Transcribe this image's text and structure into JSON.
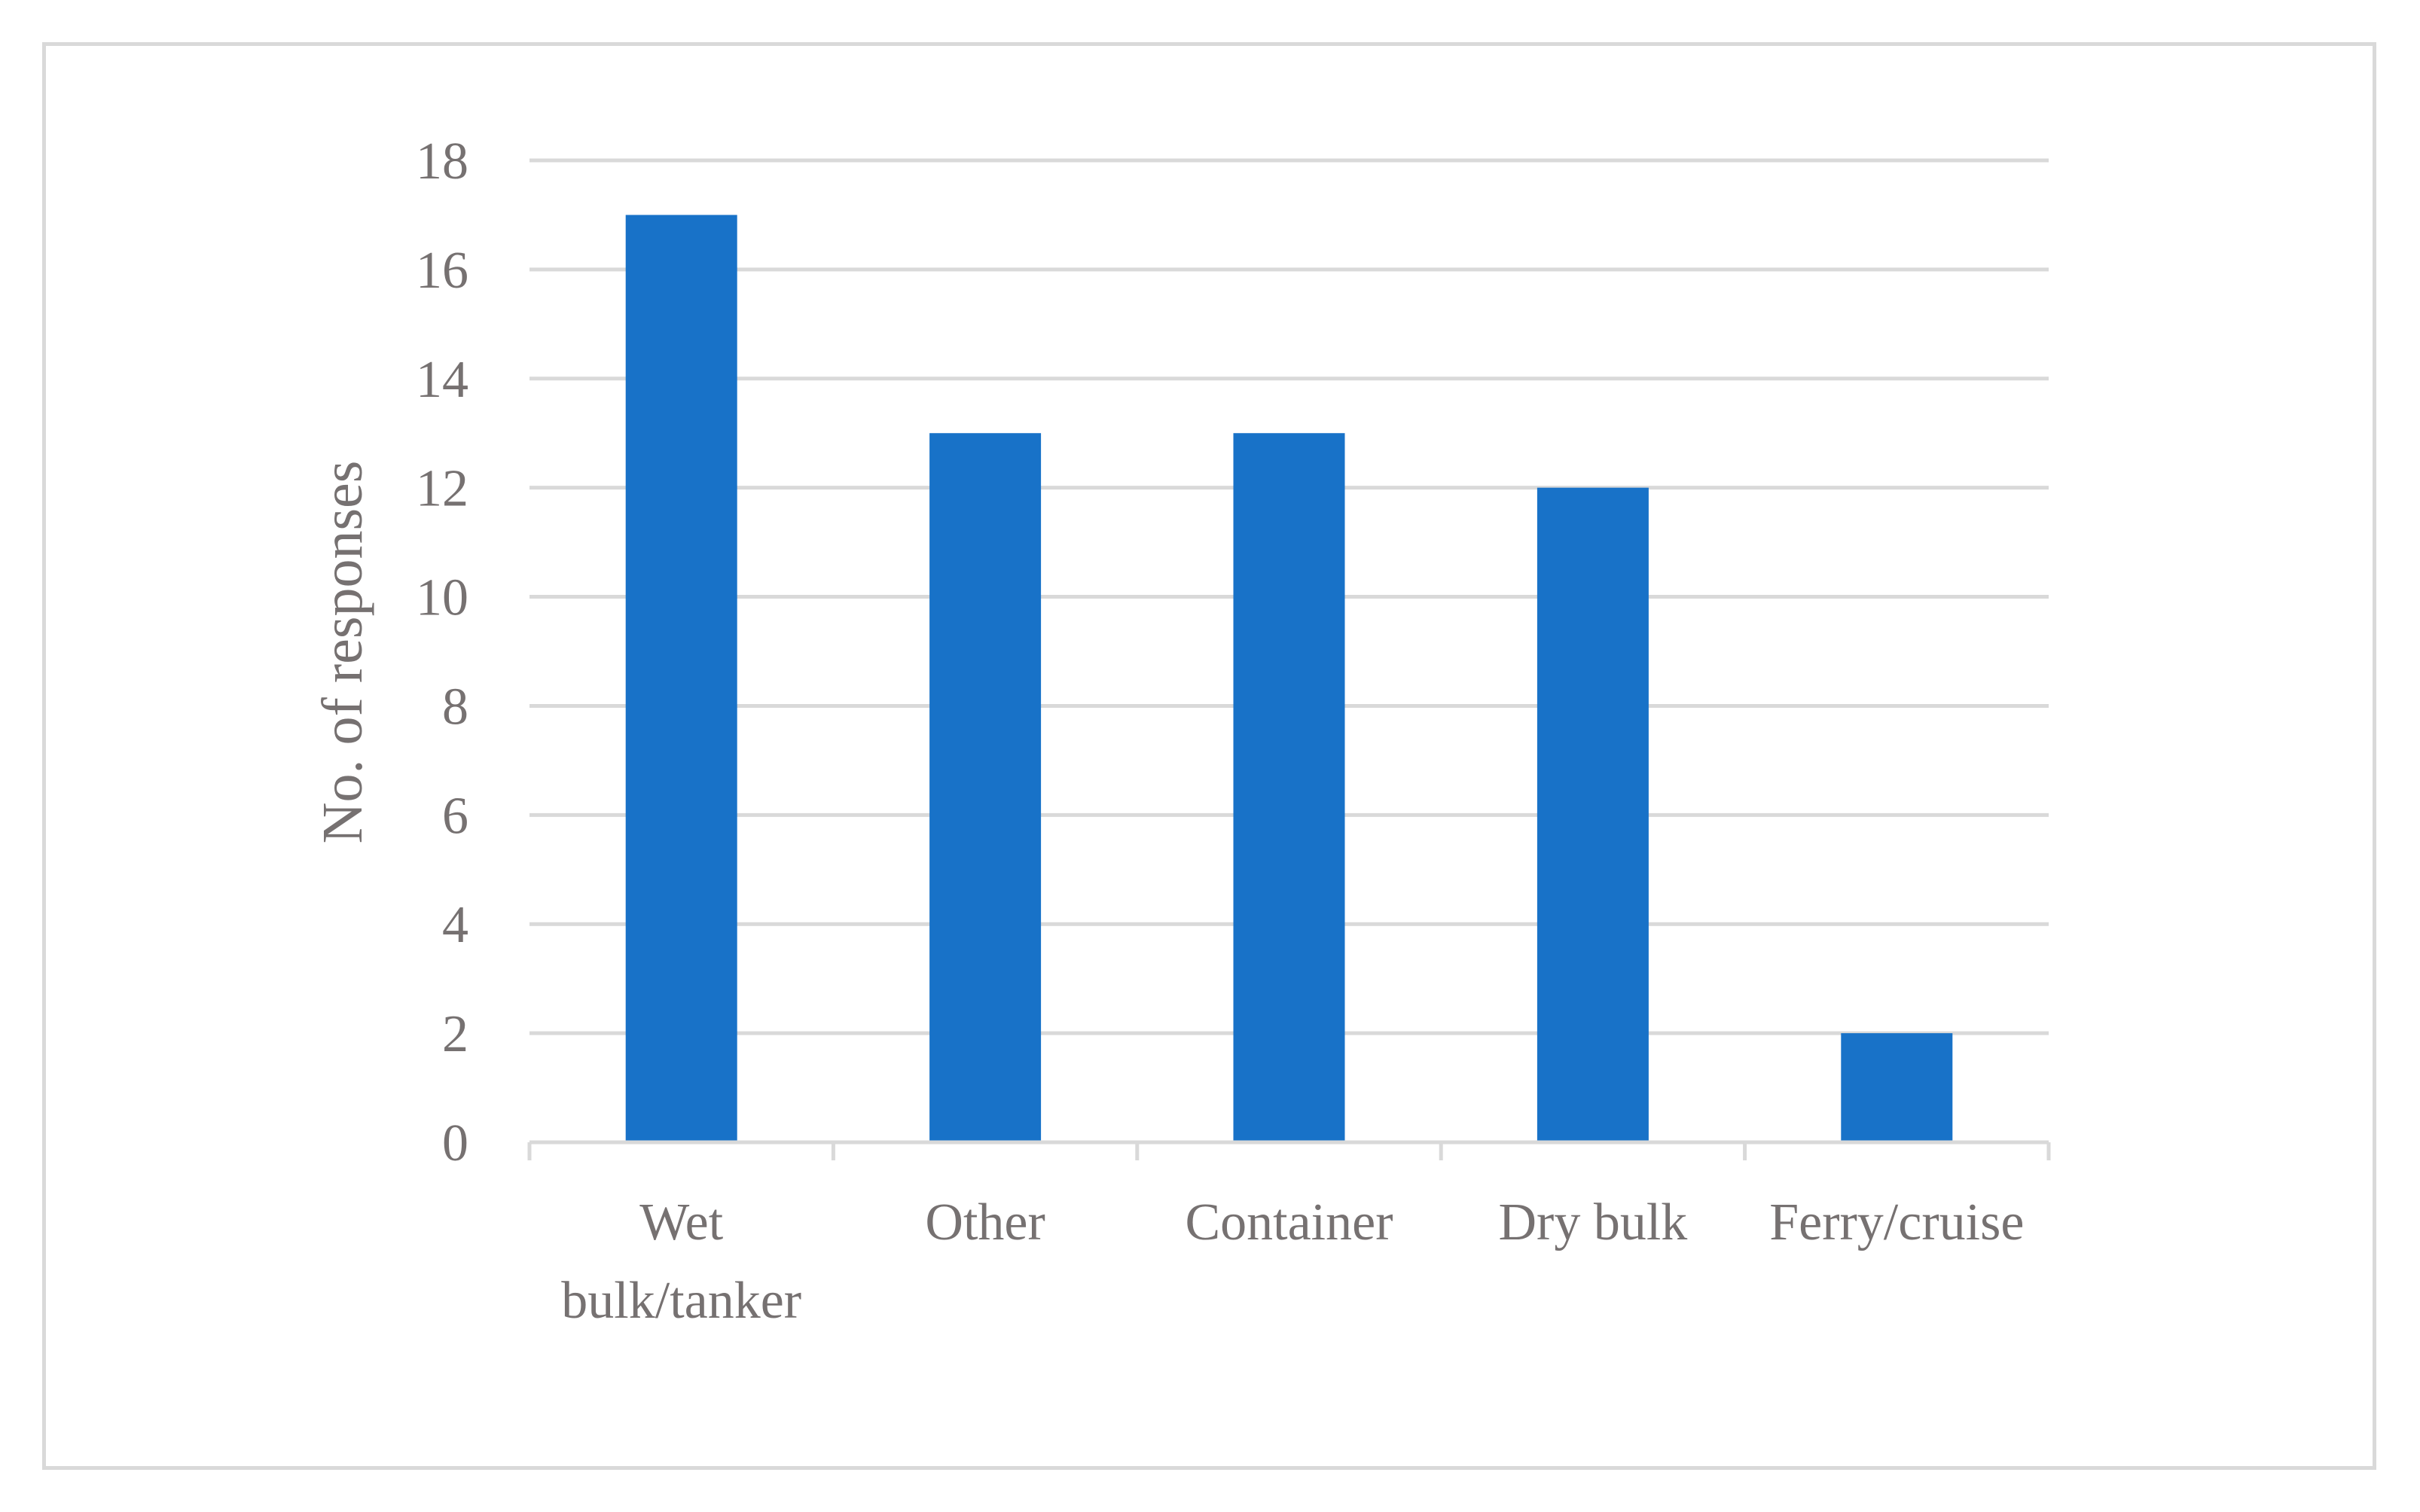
{
  "chart_data": {
    "type": "bar",
    "categories": [
      "Wet bulk/tanker",
      "Other",
      "Container",
      "Dry bulk",
      "Ferry/cruise"
    ],
    "category_lines": [
      [
        "Wet",
        "bulk/tanker"
      ],
      [
        "Other"
      ],
      [
        "Container"
      ],
      [
        "Dry bulk"
      ],
      [
        "Ferry/cruise"
      ]
    ],
    "values": [
      17,
      13,
      13,
      12,
      2
    ],
    "title": "",
    "xlabel": "",
    "ylabel": "No. of responses",
    "ylim": [
      0,
      18
    ],
    "yticks": [
      0,
      2,
      4,
      6,
      8,
      10,
      12,
      14,
      16,
      18
    ],
    "grid": true,
    "legend": "none",
    "colors": {
      "bar": "#1872C8",
      "grid": "#d9d9d9",
      "axis": "#d9d9d9",
      "text": "#767171"
    }
  }
}
